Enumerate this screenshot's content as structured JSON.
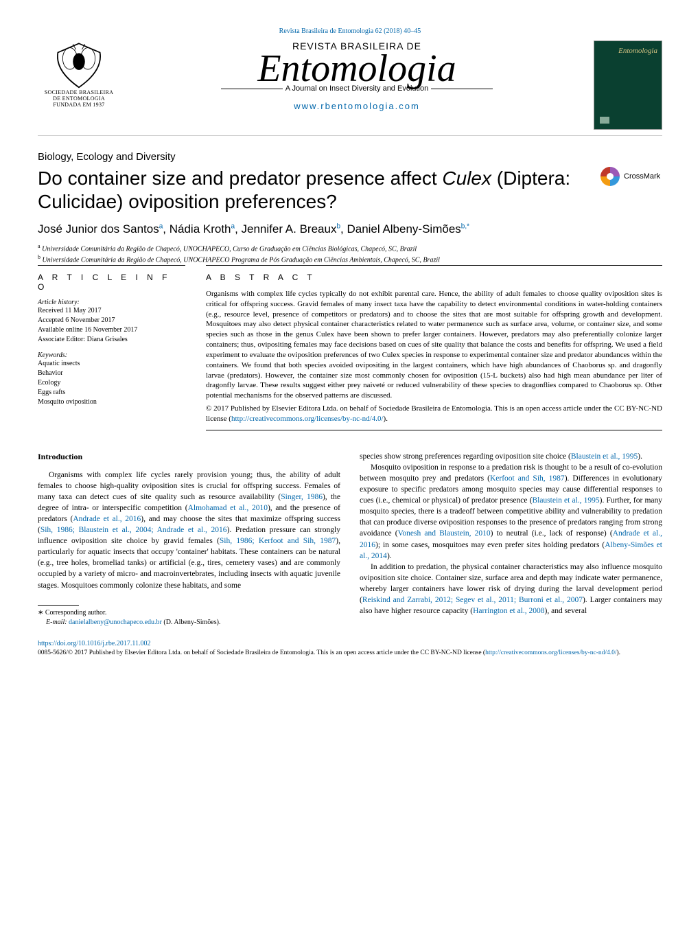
{
  "journal_link_top": "Revista Brasileira de Entomologia 62 (2018) 40–45",
  "logo": {
    "line1": "SOCIEDADE BRASILEIRA",
    "line2": "DE ENTOMOLOGIA",
    "line3": "FUNDADA EM 1937"
  },
  "masthead": {
    "overline": "REVISTA BRASILEIRA DE",
    "title": "Entomologia",
    "tagline": "A Journal on Insect Diversity and Evolution",
    "url": "www.rbentomologia.com"
  },
  "cover_thumb_title": "Entomologia",
  "section_label": "Biology, Ecology and Diversity",
  "title_pre": "Do container size and predator presence affect ",
  "title_italic": "Culex",
  "title_post": " (Diptera: Culicidae) oviposition preferences?",
  "crossmark_label": "CrossMark",
  "authors_html": "José Junior dos Santos<sup>a</sup>,  Nádia Kroth<sup>a</sup>,  Jennifer A. Breaux<sup>b</sup>, Daniel Albeny-Simões<sup>b,*</sup>",
  "affiliations": [
    {
      "sup": "a",
      "text": "Universidade Comunitária da Região de Chapecó, UNOCHAPECO, Curso de Graduação em Ciências Biológicas, Chapecó, SC, Brazil"
    },
    {
      "sup": "b",
      "text": "Universidade Comunitária da Região de Chapecó, UNOCHAPECO Programa de Pós Graduação em Ciências Ambientais, Chapecó, SC, Brazil"
    }
  ],
  "article_info": {
    "heading": "A R T I C L E   I N F O",
    "history_head": "Article history:",
    "received": "Received 11 May 2017",
    "accepted": "Accepted 6 November 2017",
    "online": "Available online 16 November 2017",
    "editor": "Associate Editor: Diana Grisales",
    "keywords_head": "Keywords:",
    "keywords": [
      "Aquatic insects",
      "Behavior",
      "Ecology",
      "Eggs rafts",
      "Mosquito oviposition"
    ]
  },
  "abstract": {
    "heading": "A B S T R A C T",
    "text": "Organisms with complex life cycles typically do not exhibit parental care. Hence, the ability of adult females to choose quality oviposition sites is critical for offspring success. Gravid females of many insect taxa have the capability to detect environmental conditions in water-holding containers (e.g., resource level, presence of competitors or predators) and to choose the sites that are most suitable for offspring growth and development. Mosquitoes may also detect physical container characteristics related to water permanence such as surface area, volume, or container size, and some species such as those in the genus Culex have been shown to prefer larger containers. However, predators may also preferentially colonize larger containers; thus, ovipositing females may face decisions based on cues of site quality that balance the costs and benefits for offspring. We used a field experiment to evaluate the oviposition preferences of two Culex species in response to experimental container size and predator abundances within the containers. We found that both species avoided ovipositing in the largest containers, which have high abundances of Chaoborus sp. and dragonfly larvae (predators). However, the container size most commonly chosen for oviposition (15-L buckets) also had high mean abundance per liter of dragonfly larvae. These results suggest either prey naiveté or reduced vulnerability of these species to dragonflies compared to Chaoborus sp. Other potential mechanisms for the observed patterns are discussed.",
    "license_pre": "© 2017 Published by Elsevier Editora Ltda. on behalf of Sociedade Brasileira de Entomologia. This is an open access article under the CC BY-NC-ND license (",
    "license_url": "http://creativecommons.org/licenses/by-nc-nd/4.0/",
    "license_post": ")."
  },
  "body": {
    "col1_heading": "Introduction",
    "col1_p1_a": "Organisms with complex life cycles rarely provision young; thus, the ability of adult females to choose high-quality oviposition sites is crucial for offspring success. Females of many taxa can detect cues of site quality such as resource availability (",
    "col1_p1_cite1": "Singer, 1986",
    "col1_p1_b": "), the degree of intra- or interspecific competition (",
    "col1_p1_cite2": "Almohamad et al., 2010",
    "col1_p1_c": "), and the presence of predators (",
    "col1_p1_cite3": "Andrade et al., 2016",
    "col1_p1_d": "), and may choose the sites that maximize offspring success (",
    "col1_p1_cite4": "Sih, 1986; Blaustein et al., 2004; Andrade et al., 2016",
    "col1_p1_e": "). Predation pressure can strongly influence oviposition site choice by gravid females (",
    "col1_p1_cite5": "Sih, 1986; Kerfoot and Sih, 1987",
    "col1_p1_f": "), particularly for aquatic insects that occupy 'container' habitats. These containers can be natural (e.g., tree holes, bromeliad tanks) or artificial (e.g., tires, cemetery vases) and are commonly occupied by a variety of micro- and macroinvertebrates, including insects with aquatic juvenile stages. Mosquitoes commonly colonize these habitats, and some",
    "col2_p1_a": "species show strong preferences regarding oviposition site choice (",
    "col2_p1_cite1": "Blaustein et al., 1995",
    "col2_p1_b": ").",
    "col2_p2_a": "Mosquito oviposition in response to a predation risk is thought to be a result of co-evolution between mosquito prey and predators (",
    "col2_p2_cite1": "Kerfoot and Sih, 1987",
    "col2_p2_b": "). Differences in evolutionary exposure to specific predators among mosquito species may cause differential responses to cues (i.e., chemical or physical) of predator presence (",
    "col2_p2_cite2": "Blaustein et al., 1995",
    "col2_p2_c": "). Further, for many mosquito species, there is a tradeoff between competitive ability and vulnerability to predation that can produce diverse oviposition responses to the presence of predators ranging from strong avoidance (",
    "col2_p2_cite3": "Vonesh and Blaustein, 2010",
    "col2_p2_d": ") to neutral (i.e., lack of response) (",
    "col2_p2_cite4": "Andrade et al., 2016",
    "col2_p2_e": "); in some cases, mosquitoes may even prefer sites holding predators (",
    "col2_p2_cite5": "Albeny-Simões et al., 2014",
    "col2_p2_f": ").",
    "col2_p3_a": "In addition to predation, the physical container characteristics may also influence mosquito oviposition site choice. Container size, surface area and depth may indicate water permanence, whereby larger containers have lower risk of drying during the larval development period (",
    "col2_p3_cite1": "Reiskind and Zarrabi, 2012; Segev et al., 2011; Burroni et al., 2007",
    "col2_p3_b": "). Larger containers may also have higher resource capacity (",
    "col2_p3_cite2": "Harrington et al., 2008",
    "col2_p3_c": "), and several"
  },
  "footnote": {
    "corr": "Corresponding author.",
    "email_label": "E-mail:",
    "email": "danielalbeny@unochapeco.edu.br",
    "email_name": "(D. Albeny-Simões)."
  },
  "doi": "https://doi.org/10.1016/j.rbe.2017.11.002",
  "copyright": {
    "pre": "0085-5626/© 2017 Published by Elsevier Editora Ltda. on behalf of Sociedade Brasileira de Entomologia. This is an open access article under the CC BY-NC-ND license (",
    "url": "http://creativecommons.org/licenses/by-nc-nd/4.0/",
    "post": ")."
  },
  "colors": {
    "link": "#0066aa",
    "text": "#000000",
    "cover_bg": "#0a4030"
  }
}
